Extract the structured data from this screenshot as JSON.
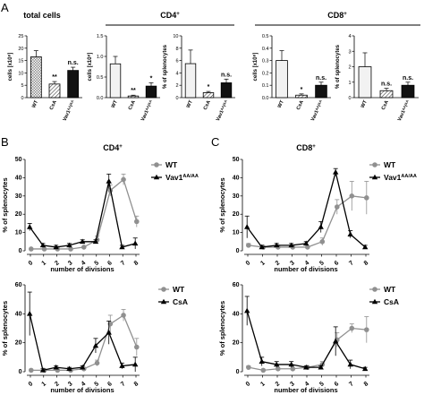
{
  "panels": {
    "A": "A",
    "B": "B",
    "C": "C"
  },
  "headings": {
    "total": "total cells",
    "cd4_main": "CD4",
    "cd4_sup": "+",
    "cd8_main": "CD8",
    "cd8_sup": "+",
    "b_main": "CD4",
    "b_sup": "+",
    "c_main": "CD8",
    "c_sup": "+"
  },
  "colors": {
    "wt_bar": "#f2f2f2",
    "csa_bar": "#ffffff",
    "vav_bar": "#111111",
    "wt_line": "#909090",
    "mut_line": "#000000"
  },
  "chart_data": [
    {
      "type": "bar",
      "panel": "A",
      "title": "total cells",
      "ylabel": "cells [x10⁸]",
      "ylim": [
        0,
        25
      ],
      "yticks": [
        "0",
        "5",
        "10",
        "15",
        "20",
        "25"
      ],
      "categories": [
        "WT",
        "CsA",
        "Vav1ᴬᴬ/ᴬᴬ"
      ],
      "values": [
        16.5,
        5.5,
        11
      ],
      "errors": [
        2.5,
        1,
        1.3
      ],
      "annotations": [
        "",
        "**",
        "n.s."
      ]
    },
    {
      "type": "bar",
      "panel": "A",
      "group": "CD4⁺",
      "ylabel": "cells [x10⁸]",
      "ylim": [
        0,
        1.5
      ],
      "yticks": [
        "0.0",
        "0.5",
        "1.0",
        "1.5"
      ],
      "categories": [
        "WT",
        "CsA",
        "Vav1ᴬᴬ/ᴬᴬ"
      ],
      "values": [
        0.82,
        0.04,
        0.28
      ],
      "errors": [
        0.18,
        0.02,
        0.08
      ],
      "annotations": [
        "",
        "**",
        "*"
      ]
    },
    {
      "type": "bar",
      "panel": "A",
      "group": "CD4⁺",
      "ylabel": "% of splenocytes",
      "ylim": [
        0,
        10
      ],
      "yticks": [
        "0",
        "2",
        "4",
        "6",
        "8",
        "10"
      ],
      "categories": [
        "WT",
        "CsA",
        "Vav1ᴬᴬ/ᴬᴬ"
      ],
      "values": [
        5.5,
        0.8,
        2.4
      ],
      "errors": [
        2.2,
        0.2,
        0.6
      ],
      "annotations": [
        "",
        "*",
        "n.s."
      ]
    },
    {
      "type": "bar",
      "panel": "A",
      "group": "CD8⁺",
      "ylabel": "cells [x10⁸]",
      "ylim": [
        0,
        0.5
      ],
      "yticks": [
        "0.0",
        "0.1",
        "0.2",
        "0.3",
        "0.4",
        "0.5"
      ],
      "categories": [
        "WT",
        "CsA",
        "Vav1ᴬᴬ/ᴬᴬ"
      ],
      "values": [
        0.3,
        0.02,
        0.1
      ],
      "errors": [
        0.08,
        0.01,
        0.025
      ],
      "annotations": [
        "",
        "*",
        "n.s."
      ]
    },
    {
      "type": "bar",
      "panel": "A",
      "group": "CD8⁺",
      "ylabel": "% of splenocytes",
      "ylim": [
        0,
        4
      ],
      "yticks": [
        "0",
        "1",
        "2",
        "3",
        "4"
      ],
      "categories": [
        "WT",
        "CsA",
        "Vav1ᴬᴬ/ᴬᴬ"
      ],
      "values": [
        2.0,
        0.45,
        0.8
      ],
      "errors": [
        0.9,
        0.15,
        0.2
      ],
      "annotations": [
        "",
        "n.s.",
        "n.s."
      ]
    },
    {
      "type": "line",
      "panel": "B",
      "group": "CD4⁺",
      "xlabel": "number of divisions",
      "ylabel": "% of splenocytes",
      "x": [
        0,
        1,
        2,
        3,
        4,
        5,
        6,
        7,
        8
      ],
      "ylim": [
        0,
        50
      ],
      "yticks": [
        "0",
        "10",
        "20",
        "30",
        "40",
        "50"
      ],
      "series": [
        {
          "name": "WT",
          "values": [
            1,
            1,
            1,
            1,
            2,
            6,
            33,
            39,
            16
          ],
          "errors": [
            0,
            0,
            0,
            0,
            0,
            2,
            3,
            3,
            3
          ]
        },
        {
          "name": "Vav1",
          "sup": "AA/AA",
          "values": [
            13,
            3,
            2,
            3,
            5,
            5,
            38,
            2,
            4
          ],
          "errors": [
            2,
            1,
            1,
            1,
            1,
            1,
            4,
            1,
            3
          ]
        }
      ]
    },
    {
      "type": "line",
      "panel": "B",
      "group": "CD4⁺",
      "xlabel": "number of divisions",
      "ylabel": "% of splenocytes",
      "x": [
        0,
        1,
        2,
        3,
        4,
        5,
        6,
        7,
        8
      ],
      "ylim": [
        0,
        60
      ],
      "yticks": [
        "0",
        "20",
        "40",
        "60"
      ],
      "series": [
        {
          "name": "WT",
          "values": [
            1,
            1,
            1,
            1,
            2,
            6,
            33,
            39,
            17
          ],
          "errors": [
            0,
            0,
            0,
            0,
            0,
            2,
            6,
            4,
            6
          ]
        },
        {
          "name": "CsA",
          "values": [
            40,
            1,
            3,
            2,
            3,
            18,
            27,
            4,
            5
          ],
          "errors": [
            15,
            1,
            1,
            1,
            1,
            5,
            8,
            2,
            5
          ]
        }
      ]
    },
    {
      "type": "line",
      "panel": "C",
      "group": "CD8⁺",
      "xlabel": "number of divisions",
      "ylabel": "% of splenocytes",
      "x": [
        0,
        1,
        2,
        3,
        4,
        5,
        6,
        7,
        8
      ],
      "ylim": [
        0,
        50
      ],
      "yticks": [
        "0",
        "10",
        "20",
        "30",
        "40",
        "50"
      ],
      "series": [
        {
          "name": "WT",
          "values": [
            3,
            2,
            2,
            2,
            2,
            5,
            24,
            30,
            29
          ],
          "errors": [
            1,
            0,
            0,
            0,
            0,
            2,
            4,
            8,
            9
          ]
        },
        {
          "name": "Vav1",
          "sup": "AA/AA",
          "values": [
            13,
            2,
            3,
            3,
            4,
            13,
            43,
            9,
            2
          ],
          "errors": [
            6,
            1,
            1,
            1,
            1,
            3,
            2,
            2,
            1
          ]
        }
      ]
    },
    {
      "type": "line",
      "panel": "C",
      "group": "CD8⁺",
      "xlabel": "number of divisions",
      "ylabel": "% of splenocytes",
      "x": [
        0,
        1,
        2,
        3,
        4,
        5,
        6,
        7,
        8
      ],
      "ylim": [
        0,
        60
      ],
      "yticks": [
        "0",
        "20",
        "40",
        "60"
      ],
      "series": [
        {
          "name": "WT",
          "values": [
            3,
            1,
            2,
            2,
            3,
            5,
            22,
            30,
            29
          ],
          "errors": [
            1,
            0,
            0,
            0,
            0,
            2,
            5,
            3,
            9
          ]
        },
        {
          "name": "CsA",
          "values": [
            42,
            7,
            5,
            5,
            3,
            3,
            21,
            5,
            2
          ],
          "errors": [
            10,
            3,
            2,
            2,
            1,
            1,
            10,
            3,
            1
          ]
        }
      ]
    }
  ]
}
